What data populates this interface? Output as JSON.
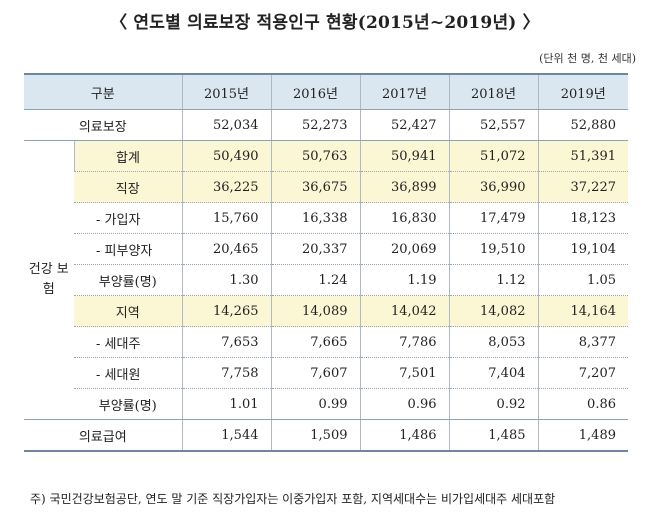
{
  "title": "〈 연도별 의료보장 적용인구 현황(2015년~2019년) 〉",
  "unit": "(단위 천 명, 천 세대)",
  "header": {
    "category": "구분",
    "years": [
      "2015년",
      "2016년",
      "2017년",
      "2018년",
      "2019년"
    ]
  },
  "rows": {
    "medical_security": {
      "label": "의료보장",
      "values": [
        "52,034",
        "52,273",
        "52,427",
        "52,557",
        "52,880"
      ]
    },
    "health_insurance_group": "건강 보험",
    "total": {
      "label": "합계",
      "values": [
        "50,490",
        "50,763",
        "50,941",
        "51,072",
        "51,391"
      ]
    },
    "workplace": {
      "label": "직장",
      "values": [
        "36,225",
        "36,675",
        "36,899",
        "36,990",
        "37,227"
      ]
    },
    "workplace_subscribers": {
      "label": "- 가입자",
      "values": [
        "15,760",
        "16,338",
        "16,830",
        "17,479",
        "18,123"
      ]
    },
    "workplace_dependents": {
      "label": "- 피부양자",
      "values": [
        "20,465",
        "20,337",
        "20,069",
        "19,510",
        "19,104"
      ]
    },
    "workplace_ratio": {
      "label": "부양률(명)",
      "values": [
        "1.30",
        "1.24",
        "1.19",
        "1.12",
        "1.05"
      ]
    },
    "regional": {
      "label": "지역",
      "values": [
        "14,265",
        "14,089",
        "14,042",
        "14,082",
        "14,164"
      ]
    },
    "regional_heads": {
      "label": "- 세대주",
      "values": [
        "7,653",
        "7,665",
        "7,786",
        "8,053",
        "8,377"
      ]
    },
    "regional_members": {
      "label": "- 세대원",
      "values": [
        "7,758",
        "7,607",
        "7,501",
        "7,404",
        "7,207"
      ]
    },
    "regional_ratio": {
      "label": "부양률(명)",
      "values": [
        "1.01",
        "0.99",
        "0.96",
        "0.92",
        "0.86"
      ]
    },
    "medical_aid": {
      "label": "의료급여",
      "values": [
        "1,544",
        "1,509",
        "1,486",
        "1,485",
        "1,489"
      ]
    }
  },
  "note": "주) 국민건강보험공단, 연도 말 기준 직장가입자는 이중가입자 포함, 지역세대수는 비가입세대주 세대포함",
  "colors": {
    "header_bg": "#dbe7f0",
    "highlight_bg": "#fbf6d3",
    "border": "#6f86a0"
  }
}
